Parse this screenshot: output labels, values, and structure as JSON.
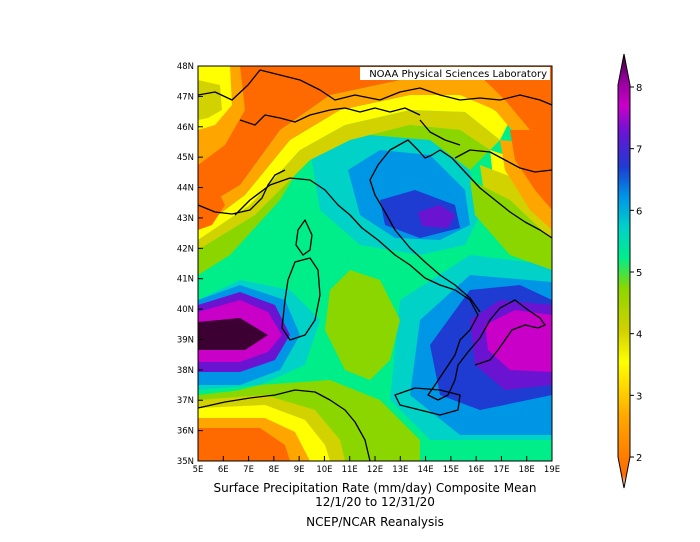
{
  "credit": "NOAA Physical Sciences Laboratory",
  "caption": {
    "line1": "Surface Precipitation Rate (mm/day) Composite Mean",
    "line2": "12/1/20  to 12/31/20",
    "line3": "NCEP/NCAR Reanalysis"
  },
  "lat_labels": [
    "48N",
    "47N",
    "46N",
    "45N",
    "44N",
    "43N",
    "42N",
    "41N",
    "40N",
    "39N",
    "38N",
    "37N",
    "36N",
    "35N"
  ],
  "lon_labels": [
    "5E",
    "6E",
    "7E",
    "8E",
    "9E",
    "10E",
    "11E",
    "12E",
    "13E",
    "14E",
    "15E",
    "16E",
    "17E",
    "18E",
    "19E"
  ],
  "colorbar": {
    "labels": [
      "2",
      "3",
      "4",
      "5",
      "6",
      "7",
      "8"
    ],
    "colors": [
      "#ffffff",
      "#ff6a00",
      "#ffa500",
      "#ffff00",
      "#d2d200",
      "#8cd600",
      "#00ee8a",
      "#00d2c8",
      "#0096e6",
      "#1e3cd2",
      "#6a14d2",
      "#c800c8",
      "#8a0094",
      "#3c0032"
    ]
  },
  "regions": {
    "orange": "#ff6a00",
    "light_orange": "#ffa500",
    "yellow": "#ffff00",
    "olive": "#d2d200",
    "lime": "#8cd600",
    "green": "#00ee8a",
    "cyan": "#00d2c8",
    "blue": "#0096e6",
    "dark_blue": "#1e3cd2",
    "violet": "#6a14d2",
    "magenta": "#c800c8",
    "purple": "#8a0094",
    "dark_purple": "#3c0032"
  }
}
